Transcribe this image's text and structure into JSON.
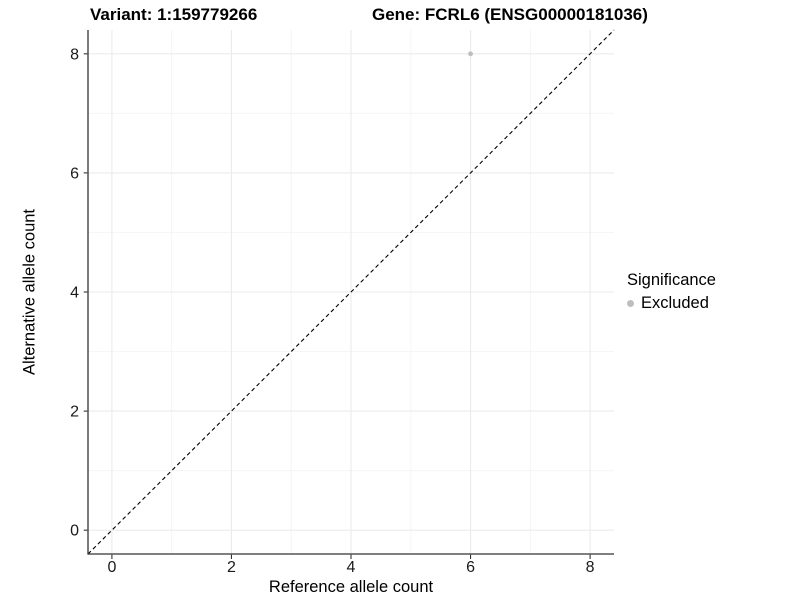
{
  "chart_data": {
    "type": "scatter",
    "title_left": "Variant: 1:159779266",
    "title_right": "Gene: FCRL6 (ENSG00000181036)",
    "xlabel": "Reference allele count",
    "ylabel": "Alternative allele count",
    "xlim": [
      -0.4,
      8.4
    ],
    "ylim": [
      -0.4,
      8.4
    ],
    "x_ticks": [
      0,
      2,
      4,
      6,
      8
    ],
    "y_ticks": [
      0,
      2,
      4,
      6,
      8
    ],
    "x_minor_ticks": [
      1,
      3,
      5,
      7
    ],
    "y_minor_ticks": [
      1,
      3,
      5,
      7
    ],
    "grid": "major and minor gridlines on white background",
    "series": [
      {
        "name": "Excluded",
        "color": "#bebebe",
        "points": [
          {
            "x": 6,
            "y": 8
          }
        ]
      }
    ],
    "reference_line": {
      "type": "identity y=x",
      "style": "dashed",
      "color": "#000000"
    },
    "legend": {
      "title": "Significance",
      "position": "right",
      "items": [
        {
          "label": "Excluded",
          "color": "#bebebe"
        }
      ]
    },
    "colors": {
      "background": "#ffffff",
      "grid_major": "#ebebeb",
      "grid_minor": "#f4f4f4",
      "axis_line": "#333333",
      "tick_mark": "#333333",
      "text": "#1a1a1a"
    }
  }
}
